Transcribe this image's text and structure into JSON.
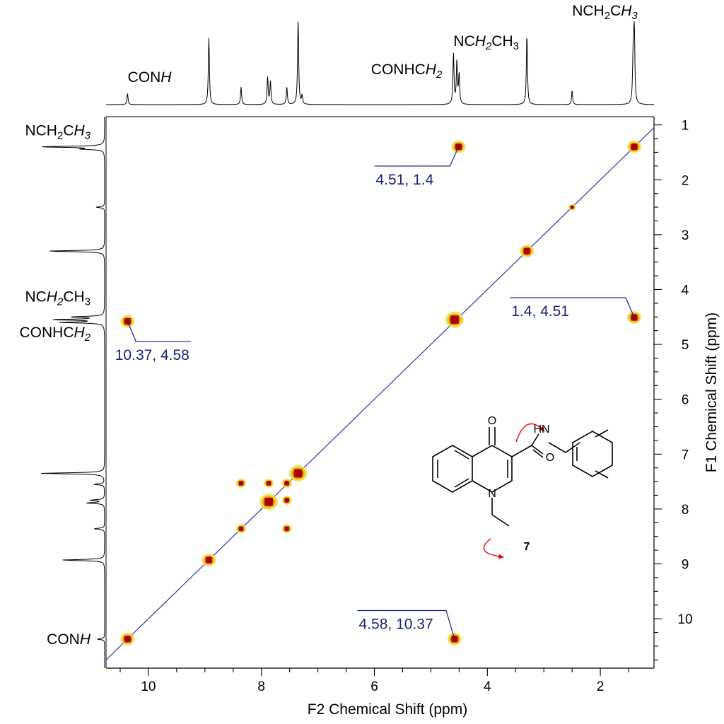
{
  "chart_data": {
    "type": "scatter",
    "subtype": "2D COSY NMR spectrum",
    "xlabel": "F2 Chemical Shift (ppm)",
    "ylabel": "F1 Chemical Shift (ppm)",
    "xlim": [
      10.75,
      1.05
    ],
    "ylim": [
      0.85,
      10.9
    ],
    "x_ticks": [
      10,
      8,
      6,
      4,
      2
    ],
    "y_ticks": [
      1,
      2,
      3,
      4,
      5,
      6,
      7,
      8,
      9,
      10
    ],
    "diagonal": true,
    "cross_peaks": [
      {
        "x": 10.37,
        "y": 10.37,
        "size": "m"
      },
      {
        "x": 8.93,
        "y": 8.93,
        "size": "m"
      },
      {
        "x": 8.36,
        "y": 8.36,
        "size": "s"
      },
      {
        "x": 8.36,
        "y": 7.53,
        "size": "s"
      },
      {
        "x": 7.87,
        "y": 7.87,
        "size": "l"
      },
      {
        "x": 7.87,
        "y": 7.53,
        "size": "s"
      },
      {
        "x": 7.55,
        "y": 7.53,
        "size": "s"
      },
      {
        "x": 7.55,
        "y": 7.84,
        "size": "s"
      },
      {
        "x": 7.55,
        "y": 8.36,
        "size": "s"
      },
      {
        "x": 7.35,
        "y": 7.35,
        "size": "l"
      },
      {
        "x": 4.58,
        "y": 4.55,
        "size": "l"
      },
      {
        "x": 4.51,
        "y": 1.4,
        "size": "m"
      },
      {
        "x": 4.58,
        "y": 10.37,
        "size": "m"
      },
      {
        "x": 3.3,
        "y": 3.3,
        "size": "m"
      },
      {
        "x": 2.5,
        "y": 2.5,
        "size": "xs"
      },
      {
        "x": 1.4,
        "y": 1.4,
        "size": "m"
      },
      {
        "x": 1.4,
        "y": 4.51,
        "size": "m"
      },
      {
        "x": 10.37,
        "y": 4.58,
        "size": "m"
      }
    ],
    "annotations": [
      {
        "text": "4.51, 1.4",
        "peak_x": 4.51,
        "peak_y": 1.4,
        "label_x": 6.0,
        "label_y": 1.75,
        "anchor": "start",
        "side": "left"
      },
      {
        "text": "1.4, 4.51",
        "peak_x": 1.4,
        "peak_y": 4.51,
        "label_x": 3.6,
        "label_y": 4.15,
        "anchor": "start",
        "side": "left"
      },
      {
        "text": "10.37, 4.58",
        "peak_x": 10.37,
        "peak_y": 4.58,
        "label_x": 9.25,
        "label_y": 4.95,
        "anchor": "middle",
        "side": "right"
      },
      {
        "text": "4.58, 10.37",
        "peak_x": 4.58,
        "peak_y": 10.37,
        "label_x": 6.3,
        "label_y": 9.85,
        "anchor": "start",
        "side": "left"
      }
    ],
    "top_spectrum": {
      "peaks": [
        {
          "ppm": 10.37,
          "h": 16
        },
        {
          "ppm": 8.93,
          "h": 95
        },
        {
          "ppm": 8.36,
          "h": 25
        },
        {
          "ppm": 7.89,
          "h": 38
        },
        {
          "ppm": 7.84,
          "h": 32
        },
        {
          "ppm": 7.55,
          "h": 25
        },
        {
          "ppm": 7.35,
          "h": 120
        },
        {
          "ppm": 7.28,
          "h": 12
        },
        {
          "ppm": 4.6,
          "h": 72
        },
        {
          "ppm": 4.54,
          "h": 60
        },
        {
          "ppm": 4.5,
          "h": 42
        },
        {
          "ppm": 3.3,
          "h": 100
        },
        {
          "ppm": 2.5,
          "h": 20
        },
        {
          "ppm": 1.42,
          "h": 60
        },
        {
          "ppm": 1.4,
          "h": 118
        }
      ],
      "labels": [
        {
          "text_parts": [
            {
              "t": "CON",
              "i": false
            },
            {
              "t": "H",
              "i": true
            }
          ],
          "ppm": 9.98,
          "level": 116
        },
        {
          "text_parts": [
            {
              "t": "CONHC",
              "i": false
            },
            {
              "t": "H",
              "i": true
            },
            {
              "t": "2",
              "i": true,
              "sub": true
            }
          ],
          "ppm": 5.43,
          "level": 105
        },
        {
          "text_parts": [
            {
              "t": "NC",
              "i": false
            },
            {
              "t": "H",
              "i": true
            },
            {
              "t": "2",
              "i": true,
              "sub": true
            },
            {
              "t": "CH",
              "i": false
            },
            {
              "t": "3",
              "i": false,
              "sub": true
            }
          ],
          "ppm": 4.02,
          "level": 65
        },
        {
          "text_parts": [
            {
              "t": "NCH",
              "i": false
            },
            {
              "t": "2",
              "i": false,
              "sub": true
            },
            {
              "t": "C",
              "i": false
            },
            {
              "t": "H",
              "i": true
            },
            {
              "t": "3",
              "i": true,
              "sub": true
            }
          ],
          "ppm": 1.92,
          "level": 22
        }
      ]
    },
    "left_spectrum": {
      "peaks": [
        {
          "ppm": 1.4,
          "h": 90
        },
        {
          "ppm": 1.44,
          "h": 30
        },
        {
          "ppm": 2.5,
          "h": 12
        },
        {
          "ppm": 3.3,
          "h": 80
        },
        {
          "ppm": 4.5,
          "h": 45
        },
        {
          "ppm": 4.55,
          "h": 70
        },
        {
          "ppm": 4.6,
          "h": 60
        },
        {
          "ppm": 7.35,
          "h": 90
        },
        {
          "ppm": 7.55,
          "h": 15
        },
        {
          "ppm": 7.84,
          "h": 20
        },
        {
          "ppm": 7.89,
          "h": 25
        },
        {
          "ppm": 8.36,
          "h": 15
        },
        {
          "ppm": 8.93,
          "h": 60
        },
        {
          "ppm": 10.37,
          "h": 10
        }
      ],
      "labels": [
        {
          "text_parts": [
            {
              "t": "NCH",
              "i": false
            },
            {
              "t": "2",
              "i": false,
              "sub": true
            },
            {
              "t": "C",
              "i": false
            },
            {
              "t": "H",
              "i": true
            },
            {
              "t": "3",
              "i": true,
              "sub": true
            }
          ],
          "ppm": 1.1
        },
        {
          "text_parts": [
            {
              "t": "NC",
              "i": false
            },
            {
              "t": "H",
              "i": true
            },
            {
              "t": "2",
              "i": true,
              "sub": true
            },
            {
              "t": "CH",
              "i": false
            },
            {
              "t": "3",
              "i": false,
              "sub": true
            }
          ],
          "ppm": 4.13
        },
        {
          "text_parts": [
            {
              "t": "CONHC",
              "i": false
            },
            {
              "t": "H",
              "i": true
            },
            {
              "t": "2",
              "i": true,
              "sub": true
            }
          ],
          "ppm": 4.78
        },
        {
          "text_parts": [
            {
              "t": "CON",
              "i": false
            },
            {
              "t": "H",
              "i": true
            }
          ],
          "ppm": 10.37
        }
      ]
    },
    "molecule": {
      "compound_number": "7",
      "atoms": [
        "O",
        "HN",
        "O",
        "N"
      ]
    }
  }
}
